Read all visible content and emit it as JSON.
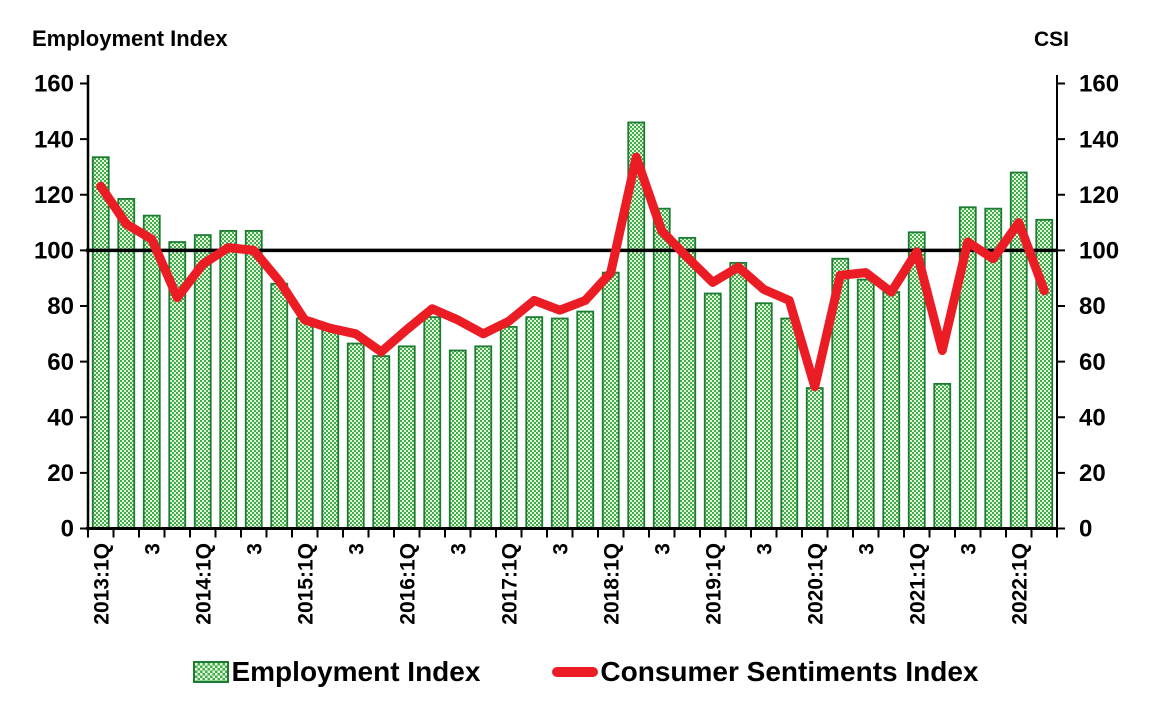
{
  "titles": {
    "left_axis": "Employment Index",
    "right_axis": "CSI"
  },
  "legend": {
    "items": [
      {
        "label": "Employment Index",
        "marker": "patterned-green-bar"
      },
      {
        "label": "Consumer Sentiments Index",
        "marker": "red-line"
      }
    ]
  },
  "colors": {
    "bar_main": "#3fae4a",
    "bar_light": "#e6f4de",
    "bar_border": "#1d7c33",
    "line": "#ec1c24",
    "reference_line": "#000000",
    "axis": "#000000",
    "text": "#000000",
    "background": "#ffffff"
  },
  "chart_data": {
    "type": "bar",
    "subtype": "bar+line combo, dual axis (same 0-160 scale both sides)",
    "title": "",
    "xlabel": "",
    "ylabel_left": "Employment Index",
    "ylabel_right": "CSI",
    "ylim": [
      0,
      160
    ],
    "y_ticks": [
      0,
      20,
      40,
      60,
      80,
      100,
      120,
      140,
      160
    ],
    "grid": "off",
    "legend_position": "bottom",
    "reference_line_y": 100,
    "x_tick_labels_shown": [
      "2013:1Q",
      "3",
      "2014:1Q",
      "3",
      "2015:1Q",
      "3",
      "2016:1Q",
      "3",
      "2017:1Q",
      "3",
      "2018:1Q",
      "3",
      "2019:1Q",
      "3",
      "2020:1Q",
      "3",
      "2021:1Q",
      "3",
      "2022:1Q"
    ],
    "categories": [
      "2013:1Q",
      "2013:2Q",
      "2013:3Q",
      "2013:4Q",
      "2014:1Q",
      "2014:2Q",
      "2014:3Q",
      "2014:4Q",
      "2015:1Q",
      "2015:2Q",
      "2015:3Q",
      "2015:4Q",
      "2016:1Q",
      "2016:2Q",
      "2016:3Q",
      "2016:4Q",
      "2017:1Q",
      "2017:2Q",
      "2017:3Q",
      "2017:4Q",
      "2018:1Q",
      "2018:2Q",
      "2018:3Q",
      "2018:4Q",
      "2019:1Q",
      "2019:2Q",
      "2019:3Q",
      "2019:4Q",
      "2020:1Q",
      "2020:2Q",
      "2020:3Q",
      "2020:4Q",
      "2021:1Q",
      "2021:2Q",
      "2021:3Q",
      "2021:4Q",
      "2022:1Q",
      "2022:2Q"
    ],
    "series": [
      {
        "name": "Employment Index",
        "type": "bar",
        "values": [
          133.5,
          118.5,
          112.5,
          103,
          105.5,
          107,
          107,
          88,
          75.5,
          71.5,
          66.5,
          62,
          65.5,
          76,
          64,
          65.5,
          72.5,
          76,
          75.5,
          78,
          92,
          146,
          115,
          104.5,
          84.5,
          95.5,
          81,
          75.5,
          50.5,
          97,
          89.5,
          85,
          106.5,
          52,
          115.5,
          115,
          128,
          111
        ]
      },
      {
        "name": "Consumer Sentiments Index",
        "type": "line",
        "values": [
          123,
          109.5,
          104,
          83,
          95,
          101,
          100,
          89,
          75,
          72,
          70,
          63.5,
          71.5,
          79,
          75,
          70,
          74.5,
          82,
          78.5,
          82,
          92,
          133.5,
          107,
          97.5,
          88.5,
          94,
          86,
          82,
          51,
          91,
          92,
          85,
          99.5,
          64,
          103,
          97,
          110,
          85.5
        ]
      }
    ]
  }
}
